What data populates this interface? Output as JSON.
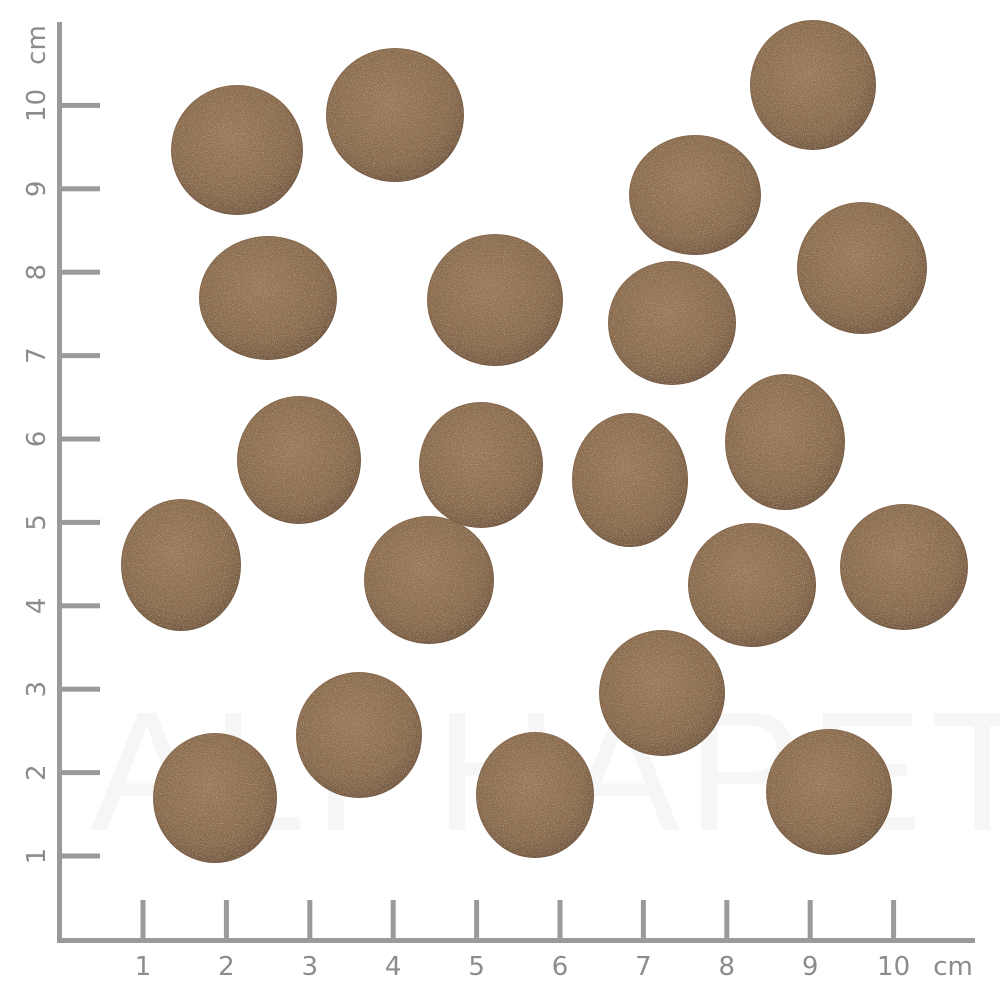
{
  "watermark": "ALPHAPET",
  "ruler": {
    "unit": "cm",
    "x_ticks": [
      "1",
      "2",
      "3",
      "4",
      "5",
      "6",
      "7",
      "8",
      "9",
      "10"
    ],
    "y_ticks": [
      "1",
      "2",
      "3",
      "4",
      "5",
      "6",
      "7",
      "8",
      "9",
      "10"
    ],
    "color": "#9a9a9a"
  },
  "kibble": {
    "count": 21,
    "color": "#87694c",
    "shadow_color": "#6e5540",
    "highlight_color": "#a6865f"
  }
}
